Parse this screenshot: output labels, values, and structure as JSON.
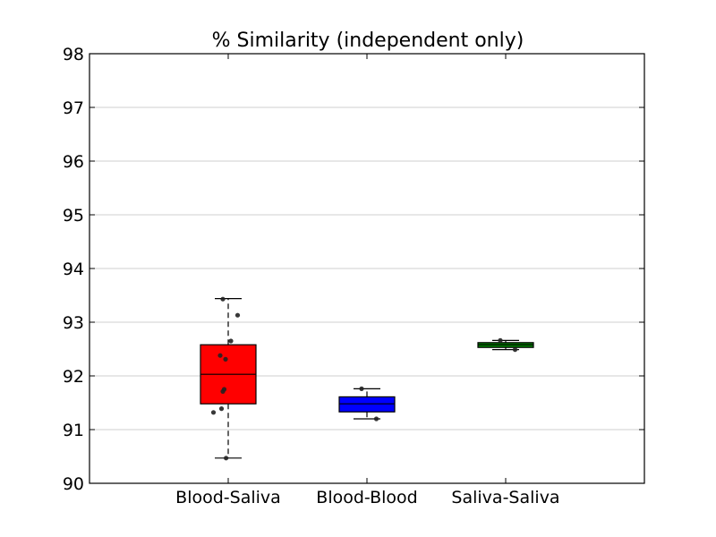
{
  "chart_data": {
    "type": "box",
    "title": "% Similarity (independent only)",
    "xlabel": "",
    "ylabel": "",
    "ylim": [
      90,
      98
    ],
    "yticks": [
      90,
      91,
      92,
      93,
      94,
      95,
      96,
      97,
      98
    ],
    "grid": "horizontal",
    "categories": [
      "Blood-Saliva",
      "Blood-Blood",
      "Saliva-Saliva"
    ],
    "boxes": [
      {
        "category": "Blood-Saliva",
        "color": "#ff0000",
        "whisker_low": 90.47,
        "q1": 91.48,
        "median": 92.03,
        "q3": 92.58,
        "whisker_high": 93.44,
        "points": [
          93.43,
          93.13,
          92.65,
          92.38,
          92.31,
          91.75,
          91.71,
          91.39,
          91.32,
          90.47
        ]
      },
      {
        "category": "Blood-Blood",
        "color": "#0000ff",
        "whisker_low": 91.2,
        "q1": 91.33,
        "median": 91.48,
        "q3": 91.61,
        "whisker_high": 91.76,
        "points": [
          91.76,
          91.2
        ]
      },
      {
        "category": "Saliva-Saliva",
        "color": "#008000",
        "whisker_low": 92.49,
        "q1": 92.53,
        "median": 92.58,
        "q3": 92.62,
        "whisker_high": 92.66,
        "points": [
          92.66,
          92.49
        ]
      }
    ]
  }
}
